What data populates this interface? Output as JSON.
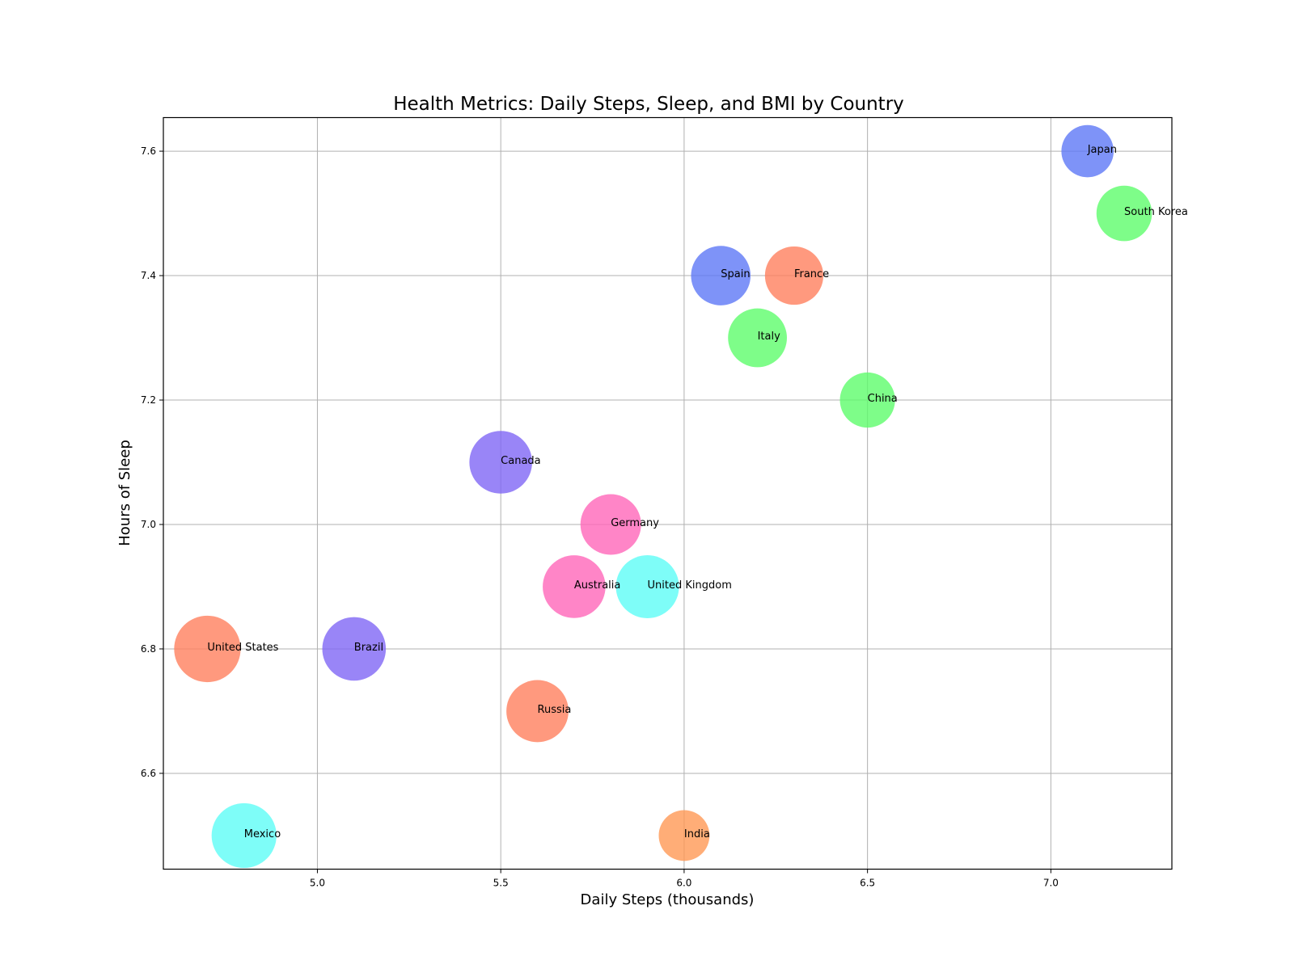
{
  "chart_data": {
    "type": "scatter",
    "title": "Health Metrics: Daily Steps, Sleep, and BMI by Country",
    "xlabel": "Daily Steps (thousands)",
    "ylabel": "Hours of Sleep",
    "xlim": [
      4.58,
      7.33
    ],
    "ylim": [
      6.446,
      7.654
    ],
    "x_ticks": [
      5.0,
      5.5,
      6.0,
      6.5,
      7.0
    ],
    "x_tick_labels": [
      "5.0",
      "5.5",
      "6.0",
      "6.5",
      "7.0"
    ],
    "y_ticks": [
      6.6,
      6.8,
      7.0,
      7.2,
      7.4,
      7.6
    ],
    "y_tick_labels": [
      "6.6",
      "6.8",
      "7.0",
      "7.2",
      "7.4",
      "7.6"
    ],
    "grid": true,
    "bubble_size_encoding": "BMI",
    "points": [
      {
        "label": "United States",
        "x": 4.7,
        "y": 6.8,
        "bmi": 28.8,
        "color": "#ff7f5e"
      },
      {
        "label": "Mexico",
        "x": 4.8,
        "y": 6.5,
        "bmi": 28.1,
        "color": "#5efcf6"
      },
      {
        "label": "Brazil",
        "x": 5.1,
        "y": 6.8,
        "bmi": 27.5,
        "color": "#7f66f5"
      },
      {
        "label": "Canada",
        "x": 5.5,
        "y": 7.1,
        "bmi": 27.2,
        "color": "#7f66f5"
      },
      {
        "label": "Russia",
        "x": 5.6,
        "y": 6.7,
        "bmi": 26.9,
        "color": "#ff7f5e"
      },
      {
        "label": "Australia",
        "x": 5.7,
        "y": 6.9,
        "bmi": 27.2,
        "color": "#ff66b9"
      },
      {
        "label": "Germany",
        "x": 5.8,
        "y": 7.0,
        "bmi": 26.3,
        "color": "#ff66b9"
      },
      {
        "label": "United Kingdom",
        "x": 5.9,
        "y": 6.9,
        "bmi": 27.3,
        "color": "#5efcf6"
      },
      {
        "label": "India",
        "x": 6.0,
        "y": 6.5,
        "bmi": 22.0,
        "color": "#ff9955"
      },
      {
        "label": "Spain",
        "x": 6.1,
        "y": 7.4,
        "bmi": 25.8,
        "color": "#5e78f6"
      },
      {
        "label": "Italy",
        "x": 6.2,
        "y": 7.3,
        "bmi": 25.5,
        "color": "#5efc6c"
      },
      {
        "label": "France",
        "x": 6.3,
        "y": 7.4,
        "bmi": 25.3,
        "color": "#ff7f5e"
      },
      {
        "label": "China",
        "x": 6.5,
        "y": 7.2,
        "bmi": 23.9,
        "color": "#5efc6c"
      },
      {
        "label": "Japan",
        "x": 7.1,
        "y": 7.6,
        "bmi": 22.6,
        "color": "#5e78f6"
      },
      {
        "label": "South Korea",
        "x": 7.2,
        "y": 7.5,
        "bmi": 24.0,
        "color": "#5efc6c"
      }
    ]
  }
}
